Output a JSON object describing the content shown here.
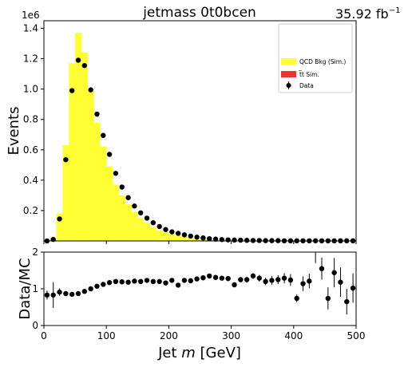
{
  "figure": {
    "title": "jetmass  0t0bcen",
    "lumi_value": "35.92 fb",
    "lumi_exp": "−1",
    "offset_label": "1e6"
  },
  "chart_data": [
    {
      "type": "bar",
      "panel": "main",
      "xlabel_prefix": "Jet ",
      "xlabel_var": "m",
      "xlabel_suffix": " [GeV]",
      "ylabel": "Events",
      "xlim": [
        0,
        500
      ],
      "ylim": [
        0,
        1.45
      ],
      "y_scale_factor": 1000000,
      "yticks": [
        0.2,
        0.4,
        0.6,
        0.8,
        1.0,
        1.2,
        1.4
      ],
      "ytick_labels": [
        "0.2",
        "0.4",
        "0.6",
        "0.8",
        "1.0",
        "1.2",
        "1.4"
      ],
      "grid": false,
      "legend_position": "top-right",
      "bin_width": 10,
      "bin_edges_start": 0,
      "series": [
        {
          "name": "QCD Bkg (Sim.)",
          "kind": "stacked-histogram",
          "color": "#ffff33",
          "values": [
            0.0,
            0.01,
            0.18,
            0.63,
            1.17,
            1.37,
            1.24,
            0.99,
            0.78,
            0.62,
            0.49,
            0.37,
            0.3,
            0.24,
            0.19,
            0.15,
            0.12,
            0.09,
            0.07,
            0.055,
            0.042,
            0.033,
            0.025,
            0.019,
            0.014,
            0.011,
            0.008,
            0.006,
            0.005,
            0.004,
            0.003,
            0.002,
            0.002,
            0.0015,
            0.001,
            0.001,
            0.0008,
            0.0006,
            0.0005,
            0.0004,
            0.0003,
            0.0003,
            0.0002,
            0.0002,
            0.0001,
            0.0001,
            0.0001,
            0.0001,
            0.0001,
            0.0001
          ]
        },
        {
          "name": "t̅t Sim.",
          "kind": "stacked-histogram",
          "color": "#ee3333",
          "values": [
            0,
            0,
            0,
            0,
            0,
            0,
            0,
            0,
            0,
            0,
            0,
            0,
            0,
            0,
            0,
            0,
            0,
            0,
            0,
            0,
            0,
            0,
            0,
            0,
            0,
            0,
            0,
            0,
            0,
            0,
            0,
            0,
            0,
            0,
            0,
            0,
            0,
            0,
            0,
            0,
            0,
            0,
            0,
            0,
            0,
            0,
            0,
            0,
            0,
            0
          ]
        },
        {
          "name": "Data",
          "kind": "points",
          "color": "#000000",
          "values": [
            0.0,
            0.01,
            0.145,
            0.535,
            0.99,
            1.19,
            1.155,
            0.995,
            0.835,
            0.695,
            0.57,
            0.445,
            0.355,
            0.285,
            0.23,
            0.185,
            0.15,
            0.12,
            0.095,
            0.075,
            0.06,
            0.05,
            0.04,
            0.032,
            0.025,
            0.02,
            0.015,
            0.012,
            0.009,
            0.007,
            0.006,
            0.005,
            0.004,
            0.003,
            0.003,
            0.002,
            0.002,
            0.002,
            0.001,
            0.001,
            0.001,
            0.001,
            0.001,
            0.001,
            0.001,
            0.001,
            0.001,
            0.001,
            0.001,
            0.001
          ]
        }
      ]
    },
    {
      "type": "scatter",
      "panel": "ratio",
      "xlabel": "",
      "ylabel": "Data/MC",
      "xlim": [
        0,
        500
      ],
      "ylim": [
        0,
        2
      ],
      "yticks": [
        0,
        1,
        2
      ],
      "xticks": [
        0,
        100,
        200,
        300,
        400,
        500
      ],
      "grid": false,
      "bin_width": 10,
      "ratio": [
        0.83,
        0.83,
        0.91,
        0.87,
        0.85,
        0.87,
        0.93,
        1.0,
        1.07,
        1.12,
        1.17,
        1.2,
        1.19,
        1.18,
        1.21,
        1.2,
        1.23,
        1.2,
        1.2,
        1.16,
        1.23,
        1.1,
        1.23,
        1.22,
        1.27,
        1.3,
        1.35,
        1.31,
        1.29,
        1.28,
        1.11,
        1.25,
        1.25,
        1.35,
        1.29,
        1.2,
        1.23,
        1.25,
        1.29,
        1.24,
        0.74,
        1.14,
        1.21,
        2.0,
        1.55,
        0.74,
        1.44,
        1.18,
        0.65,
        1.02
      ],
      "err": [
        0.12,
        0.35,
        0.1,
        0.06,
        0.05,
        0.05,
        0.05,
        0.05,
        0.05,
        0.05,
        0.05,
        0.05,
        0.05,
        0.05,
        0.05,
        0.05,
        0.05,
        0.05,
        0.05,
        0.05,
        0.05,
        0.05,
        0.05,
        0.05,
        0.05,
        0.06,
        0.06,
        0.06,
        0.06,
        0.07,
        0.07,
        0.07,
        0.08,
        0.08,
        0.09,
        0.1,
        0.12,
        0.12,
        0.14,
        0.16,
        0.1,
        0.2,
        0.2,
        0.3,
        0.3,
        0.3,
        0.4,
        0.4,
        0.35,
        0.4
      ]
    }
  ]
}
